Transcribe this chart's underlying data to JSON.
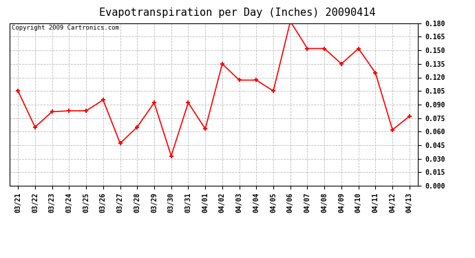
{
  "title": "Evapotranspiration per Day (Inches) 20090414",
  "copyright_text": "Copyright 2009 Cartronics.com",
  "labels": [
    "03/21",
    "03/22",
    "03/23",
    "03/24",
    "03/25",
    "03/26",
    "03/27",
    "03/28",
    "03/29",
    "03/30",
    "03/31",
    "04/01",
    "04/02",
    "04/03",
    "04/04",
    "04/05",
    "04/06",
    "04/07",
    "04/08",
    "04/09",
    "04/10",
    "04/11",
    "04/12",
    "04/13"
  ],
  "values": [
    0.105,
    0.065,
    0.082,
    0.083,
    0.083,
    0.095,
    0.047,
    0.065,
    0.092,
    0.033,
    0.092,
    0.063,
    0.135,
    0.117,
    0.117,
    0.105,
    0.182,
    0.152,
    0.152,
    0.135,
    0.152,
    0.125,
    0.062,
    0.077
  ],
  "line_color": "red",
  "marker": "+",
  "marker_size": 5,
  "marker_edge_width": 1.5,
  "line_width": 1.2,
  "background_color": "#ffffff",
  "plot_bg_color": "#ffffff",
  "grid_color": "#bbbbbb",
  "ylim": [
    0.0,
    0.18
  ],
  "ytick_step": 0.015,
  "title_fontsize": 11,
  "tick_fontsize": 7,
  "copyright_fontsize": 6.5
}
